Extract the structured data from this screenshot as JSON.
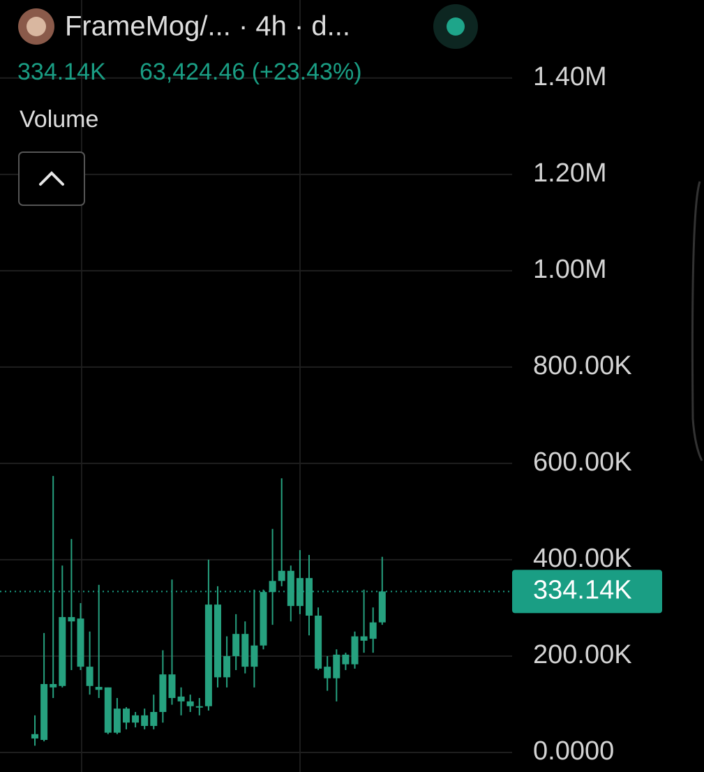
{
  "header": {
    "title": "FrameMog/... · 4h · d...",
    "price": "334.14K",
    "change": "63,424.46 (+23.43%)",
    "indicator": "Volume"
  },
  "chart_data": {
    "type": "candlestick",
    "color": "#26a17f",
    "grid": true,
    "ylim": [
      -40600,
      1562000
    ],
    "yticks": [
      {
        "value": 0,
        "label": "0.0000"
      },
      {
        "value": 200000,
        "label": "200.00K"
      },
      {
        "value": 400000,
        "label": "400.00K"
      },
      {
        "value": 600000,
        "label": "600.00K"
      },
      {
        "value": 800000,
        "label": "800.00K"
      },
      {
        "value": 1000000,
        "label": "1.00M"
      },
      {
        "value": 1200000,
        "label": "1.20M"
      },
      {
        "value": 1400000,
        "label": "1.40M"
      }
    ],
    "open": [
      29000,
      26000,
      142000,
      138000,
      281000,
      278000,
      178000,
      136000,
      135000,
      41000,
      91000,
      62000,
      77000,
      55000,
      84000,
      162000,
      116000,
      106000,
      96000,
      96000,
      307000,
      156000,
      200000,
      246000,
      178000,
      222000,
      333000,
      356000,
      377000,
      304000,
      362000,
      284000,
      178000,
      154000,
      203000,
      183000,
      241000,
      236000,
      270000
    ],
    "high": [
      77000,
      248000,
      574000,
      388000,
      443000,
      310000,
      251000,
      348000,
      135000,
      113000,
      94000,
      84000,
      91000,
      120000,
      212000,
      359000,
      135000,
      120000,
      113000,
      400000,
      345000,
      241000,
      287000,
      272000,
      338000,
      338000,
      464000,
      569000,
      388000,
      420000,
      410000,
      301000,
      200000,
      214000,
      207000,
      251000,
      338000,
      301000,
      406000
    ],
    "low": [
      14000,
      23000,
      113000,
      135000,
      171000,
      171000,
      120000,
      113000,
      38000,
      38000,
      48000,
      52000,
      48000,
      48000,
      62000,
      99000,
      77000,
      84000,
      77000,
      87000,
      135000,
      135000,
      171000,
      164000,
      135000,
      214000,
      265000,
      345000,
      272000,
      287000,
      243000,
      171000,
      128000,
      106000,
      171000,
      174000,
      207000,
      207000,
      265000
    ],
    "close": [
      38000,
      142000,
      135000,
      281000,
      272000,
      178000,
      138000,
      130000,
      41000,
      91000,
      62000,
      77000,
      55000,
      84000,
      162000,
      113000,
      106000,
      96000,
      96000,
      307000,
      156000,
      200000,
      246000,
      178000,
      222000,
      333000,
      356000,
      377000,
      304000,
      362000,
      284000,
      174000,
      154000,
      203000,
      183000,
      241000,
      232000,
      270000,
      334140
    ],
    "price_line": {
      "value": 334140,
      "label": "334.14K",
      "color": "#1a9e84"
    }
  }
}
